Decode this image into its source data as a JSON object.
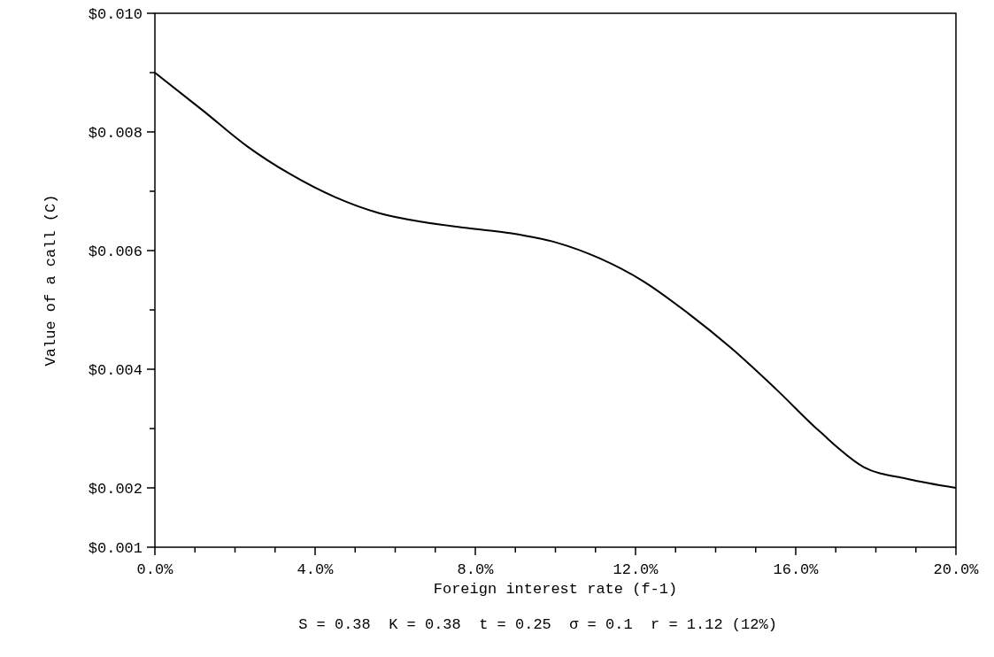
{
  "chart_data": {
    "type": "line",
    "xlabel": "Foreign interest rate (f-1)",
    "ylabel": "Value of a call (C)",
    "annotations": [
      "S = 0.38  K = 0.38  t = 0.25  σ = 0.1  r = 1.12 (12%)"
    ],
    "x": [
      0,
      1.2,
      2.3,
      3.4,
      4.5,
      5.6,
      6.7,
      7.8,
      8.9,
      10.0,
      11.1,
      12.2,
      13.3,
      14.4,
      15.5,
      16.6,
      17.7,
      18.8,
      20
    ],
    "series": [
      {
        "color": "#000000",
        "values": [
          0.009,
          0.00836,
          0.00776,
          0.00728,
          0.0069,
          0.00663,
          0.00648,
          0.00638,
          0.00629,
          0.00614,
          0.00587,
          0.00548,
          0.00495,
          0.00435,
          0.00367,
          0.00295,
          0.00235,
          0.00215,
          0.002
        ]
      }
    ],
    "xlim": [
      0,
      20
    ],
    "ylim": [
      0.001,
      0.01
    ],
    "xticks": [
      {
        "value": 0,
        "label": "0.0%"
      },
      {
        "value": 1,
        "label": null
      },
      {
        "value": 2,
        "label": null
      },
      {
        "value": 3,
        "label": null
      },
      {
        "value": 4,
        "label": "4.0%"
      },
      {
        "value": 5,
        "label": null
      },
      {
        "value": 6,
        "label": null
      },
      {
        "value": 7,
        "label": null
      },
      {
        "value": 8,
        "label": "8.0%"
      },
      {
        "value": 9,
        "label": null
      },
      {
        "value": 10,
        "label": null
      },
      {
        "value": 11,
        "label": null
      },
      {
        "value": 12,
        "label": "12.0%"
      },
      {
        "value": 13,
        "label": null
      },
      {
        "value": 14,
        "label": null
      },
      {
        "value": 15,
        "label": null
      },
      {
        "value": 16,
        "label": "16.0%"
      },
      {
        "value": 17,
        "label": null
      },
      {
        "value": 18,
        "label": null
      },
      {
        "value": 19,
        "label": null
      },
      {
        "value": 20,
        "label": "20.0%"
      }
    ],
    "yticks": [
      {
        "value": 0.001,
        "label": "$0.001"
      },
      {
        "value": 0.002,
        "label": "$0.002"
      },
      {
        "value": 0.003,
        "label": null
      },
      {
        "value": 0.004,
        "label": "$0.004"
      },
      {
        "value": 0.005,
        "label": null
      },
      {
        "value": 0.006,
        "label": "$0.006"
      },
      {
        "value": 0.007,
        "label": null
      },
      {
        "value": 0.008,
        "label": "$0.008"
      },
      {
        "value": 0.009,
        "label": null
      },
      {
        "value": 0.01,
        "label": "$0.010"
      }
    ],
    "grid": false,
    "marker": "none",
    "line_style": "solid"
  }
}
